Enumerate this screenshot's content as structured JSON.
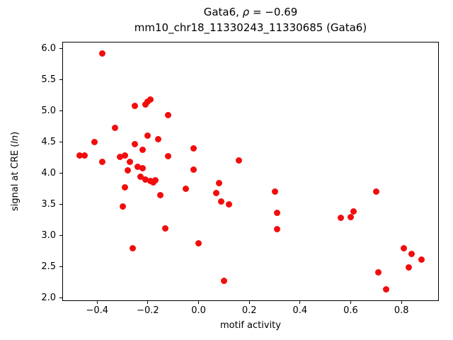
{
  "figure": {
    "title_prefix": "Gata6, ",
    "title_rho": "ρ",
    "title_eq": " = −0.69",
    "subtitle": "mm10_chr18_11330243_11330685 (Gata6)",
    "xlabel": "motif activity",
    "ylabel_prefix": "signal at CRE (",
    "ylabel_italic": "ln",
    "ylabel_suffix": ")"
  },
  "chart_data": {
    "type": "scatter",
    "title": "Gata6, ρ = −0.69",
    "subtitle": "mm10_chr18_11330243_11330685 (Gata6)",
    "xlabel": "motif activity",
    "ylabel": "signal at CRE (ln)",
    "legend": null,
    "grid": false,
    "point_color": "#f20d0d",
    "xlim": [
      -0.5375,
      0.9475
    ],
    "ylim": [
      1.951,
      6.109
    ],
    "x_ticks": [
      {
        "value": -0.4,
        "label": "−0.4"
      },
      {
        "value": -0.2,
        "label": "−0.2"
      },
      {
        "value": 0.0,
        "label": "0.0"
      },
      {
        "value": 0.2,
        "label": "0.2"
      },
      {
        "value": 0.4,
        "label": "0.4"
      },
      {
        "value": 0.6,
        "label": "0.6"
      },
      {
        "value": 0.8,
        "label": "0.8"
      }
    ],
    "y_ticks": [
      {
        "value": 2.0,
        "label": "2.0"
      },
      {
        "value": 2.5,
        "label": "2.5"
      },
      {
        "value": 3.0,
        "label": "3.0"
      },
      {
        "value": 3.5,
        "label": "3.5"
      },
      {
        "value": 4.0,
        "label": "4.0"
      },
      {
        "value": 4.5,
        "label": "4.5"
      },
      {
        "value": 5.0,
        "label": "5.0"
      },
      {
        "value": 5.5,
        "label": "5.5"
      },
      {
        "value": 6.0,
        "label": "6.0"
      }
    ],
    "points": [
      [
        -0.47,
        4.28
      ],
      [
        -0.45,
        4.29
      ],
      [
        -0.41,
        4.5
      ],
      [
        -0.38,
        5.92
      ],
      [
        -0.38,
        4.18
      ],
      [
        -0.33,
        4.73
      ],
      [
        -0.31,
        4.26
      ],
      [
        -0.29,
        4.28
      ],
      [
        -0.3,
        3.47
      ],
      [
        -0.29,
        3.78
      ],
      [
        -0.28,
        4.05
      ],
      [
        -0.27,
        4.18
      ],
      [
        -0.26,
        2.8
      ],
      [
        -0.25,
        5.08
      ],
      [
        -0.25,
        4.47
      ],
      [
        -0.24,
        4.1
      ],
      [
        -0.23,
        3.95
      ],
      [
        -0.22,
        4.38
      ],
      [
        -0.22,
        4.08
      ],
      [
        -0.21,
        5.1
      ],
      [
        -0.21,
        3.9
      ],
      [
        -0.2,
        5.15
      ],
      [
        -0.2,
        4.6
      ],
      [
        -0.19,
        5.18
      ],
      [
        -0.19,
        3.88
      ],
      [
        -0.18,
        3.85
      ],
      [
        -0.17,
        3.89
      ],
      [
        -0.16,
        4.55
      ],
      [
        -0.15,
        3.65
      ],
      [
        -0.13,
        3.12
      ],
      [
        -0.12,
        4.93
      ],
      [
        -0.12,
        4.27
      ],
      [
        -0.05,
        3.75
      ],
      [
        -0.02,
        4.4
      ],
      [
        -0.02,
        4.06
      ],
      [
        0.0,
        2.88
      ],
      [
        0.07,
        3.68
      ],
      [
        0.08,
        3.84
      ],
      [
        0.09,
        3.55
      ],
      [
        0.1,
        2.28
      ],
      [
        0.12,
        3.5
      ],
      [
        0.16,
        4.21
      ],
      [
        0.3,
        3.71
      ],
      [
        0.31,
        3.36
      ],
      [
        0.31,
        3.1
      ],
      [
        0.56,
        3.29
      ],
      [
        0.6,
        3.3
      ],
      [
        0.61,
        3.39
      ],
      [
        0.7,
        3.71
      ],
      [
        0.71,
        2.41
      ],
      [
        0.74,
        2.14
      ],
      [
        0.81,
        2.8
      ],
      [
        0.83,
        2.49
      ],
      [
        0.84,
        2.71
      ],
      [
        0.88,
        2.62
      ]
    ]
  }
}
